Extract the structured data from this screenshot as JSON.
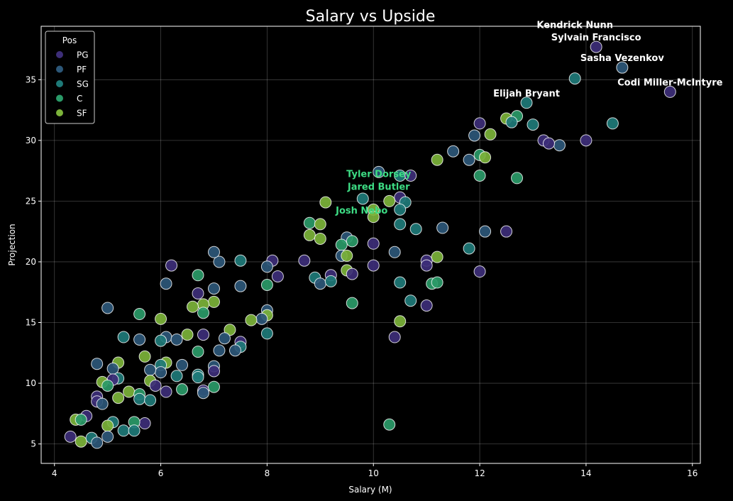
{
  "chart_data": {
    "type": "scatter",
    "title": "Salary vs Upside",
    "xlabel": "Salary (M)",
    "ylabel": "Projection",
    "xlim": [
      3.75,
      16.15
    ],
    "ylim": [
      3.4,
      39.4
    ],
    "xticks": [
      4,
      6,
      8,
      10,
      12,
      14,
      16
    ],
    "yticks": [
      5,
      10,
      15,
      20,
      25,
      30,
      35
    ],
    "grid": true,
    "legend": {
      "title": "Pos",
      "placement": "top-left",
      "entries": [
        "PG",
        "PF",
        "SG",
        "C",
        "SF"
      ]
    },
    "colors": {
      "PG": "#3d2e78",
      "PF": "#2c5778",
      "SG": "#1e7a78",
      "C": "#2a9a68",
      "SF": "#7cb33a"
    },
    "annotation_colors": {
      "top": "#ffffff",
      "value": "#3ddc84"
    },
    "annotations": [
      {
        "text": "Sylvain Francisco",
        "x": 14.19,
        "y": 37.7,
        "style": "top"
      },
      {
        "text": "Sasha Vezenkov",
        "x": 14.68,
        "y": 36.0,
        "style": "top"
      },
      {
        "text": "Kendrick Nunn",
        "x": 13.79,
        "y": 35.1,
        "style": "top"
      },
      {
        "text": "Codi Miller-McIntyre",
        "x": 15.58,
        "y": 34.0,
        "style": "top"
      },
      {
        "text": "Elijah Bryant",
        "x": 12.88,
        "y": 33.1,
        "style": "top"
      },
      {
        "text": "Jared Butler",
        "x": 10.1,
        "y": 25.4,
        "style": "value"
      },
      {
        "text": "Tyler Dorsey",
        "x": 10.1,
        "y": 25.4,
        "style": "value"
      },
      {
        "text": "Josh Nebo",
        "x": 9.78,
        "y": 23.45,
        "style": "value"
      }
    ],
    "points": [
      {
        "x": 14.19,
        "y": 37.7,
        "pos": "PG"
      },
      {
        "x": 14.68,
        "y": 36.0,
        "pos": "PF"
      },
      {
        "x": 13.79,
        "y": 35.1,
        "pos": "SG"
      },
      {
        "x": 15.58,
        "y": 34.0,
        "pos": "PG"
      },
      {
        "x": 12.88,
        "y": 33.1,
        "pos": "SG"
      },
      {
        "x": 14.5,
        "y": 31.4,
        "pos": "SG"
      },
      {
        "x": 14.0,
        "y": 30.0,
        "pos": "PG"
      },
      {
        "x": 13.5,
        "y": 29.6,
        "pos": "PF"
      },
      {
        "x": 13.2,
        "y": 30.0,
        "pos": "PG"
      },
      {
        "x": 13.3,
        "y": 29.75,
        "pos": "PG"
      },
      {
        "x": 13.0,
        "y": 31.3,
        "pos": "SG"
      },
      {
        "x": 12.7,
        "y": 32.0,
        "pos": "C"
      },
      {
        "x": 12.5,
        "y": 31.8,
        "pos": "SF"
      },
      {
        "x": 12.6,
        "y": 31.5,
        "pos": "SG"
      },
      {
        "x": 12.2,
        "y": 30.5,
        "pos": "SF"
      },
      {
        "x": 12.0,
        "y": 31.4,
        "pos": "PG"
      },
      {
        "x": 11.9,
        "y": 30.4,
        "pos": "PF"
      },
      {
        "x": 11.5,
        "y": 29.1,
        "pos": "PF"
      },
      {
        "x": 11.8,
        "y": 28.4,
        "pos": "PF"
      },
      {
        "x": 12.0,
        "y": 28.8,
        "pos": "C"
      },
      {
        "x": 12.1,
        "y": 28.6,
        "pos": "SF"
      },
      {
        "x": 11.2,
        "y": 28.4,
        "pos": "SF"
      },
      {
        "x": 12.0,
        "y": 27.1,
        "pos": "C"
      },
      {
        "x": 12.7,
        "y": 26.9,
        "pos": "C"
      },
      {
        "x": 10.1,
        "y": 27.4,
        "pos": "PF"
      },
      {
        "x": 10.5,
        "y": 27.1,
        "pos": "SG"
      },
      {
        "x": 10.7,
        "y": 27.1,
        "pos": "PG"
      },
      {
        "x": 10.5,
        "y": 25.3,
        "pos": "PG"
      },
      {
        "x": 10.6,
        "y": 24.9,
        "pos": "SG"
      },
      {
        "x": 10.3,
        "y": 25.0,
        "pos": "SF"
      },
      {
        "x": 9.8,
        "y": 25.2,
        "pos": "SG"
      },
      {
        "x": 9.1,
        "y": 24.9,
        "pos": "SF"
      },
      {
        "x": 10.0,
        "y": 24.3,
        "pos": "SF"
      },
      {
        "x": 10.0,
        "y": 23.7,
        "pos": "SF"
      },
      {
        "x": 10.5,
        "y": 24.3,
        "pos": "SG"
      },
      {
        "x": 10.5,
        "y": 23.1,
        "pos": "SG"
      },
      {
        "x": 10.8,
        "y": 22.7,
        "pos": "SG"
      },
      {
        "x": 11.3,
        "y": 22.8,
        "pos": "PF"
      },
      {
        "x": 12.1,
        "y": 22.5,
        "pos": "PF"
      },
      {
        "x": 12.5,
        "y": 22.5,
        "pos": "PG"
      },
      {
        "x": 8.8,
        "y": 23.2,
        "pos": "C"
      },
      {
        "x": 9.0,
        "y": 23.1,
        "pos": "SF"
      },
      {
        "x": 8.8,
        "y": 22.2,
        "pos": "SF"
      },
      {
        "x": 9.0,
        "y": 21.9,
        "pos": "SF"
      },
      {
        "x": 9.5,
        "y": 22.0,
        "pos": "PF"
      },
      {
        "x": 9.6,
        "y": 21.7,
        "pos": "C"
      },
      {
        "x": 9.4,
        "y": 21.4,
        "pos": "C"
      },
      {
        "x": 10.0,
        "y": 21.5,
        "pos": "PG"
      },
      {
        "x": 9.4,
        "y": 20.5,
        "pos": "PF"
      },
      {
        "x": 9.5,
        "y": 20.5,
        "pos": "SF"
      },
      {
        "x": 10.4,
        "y": 20.8,
        "pos": "PF"
      },
      {
        "x": 11.0,
        "y": 20.1,
        "pos": "PG"
      },
      {
        "x": 11.0,
        "y": 19.7,
        "pos": "PG"
      },
      {
        "x": 11.2,
        "y": 20.4,
        "pos": "SF"
      },
      {
        "x": 11.8,
        "y": 21.1,
        "pos": "SG"
      },
      {
        "x": 12.0,
        "y": 19.2,
        "pos": "PG"
      },
      {
        "x": 10.0,
        "y": 19.7,
        "pos": "PG"
      },
      {
        "x": 9.5,
        "y": 19.3,
        "pos": "SF"
      },
      {
        "x": 9.6,
        "y": 19.0,
        "pos": "PG"
      },
      {
        "x": 8.9,
        "y": 18.7,
        "pos": "SG"
      },
      {
        "x": 9.2,
        "y": 18.9,
        "pos": "PG"
      },
      {
        "x": 9.0,
        "y": 18.2,
        "pos": "PF"
      },
      {
        "x": 9.2,
        "y": 18.4,
        "pos": "SG"
      },
      {
        "x": 10.5,
        "y": 18.3,
        "pos": "SG"
      },
      {
        "x": 11.1,
        "y": 18.2,
        "pos": "C"
      },
      {
        "x": 11.2,
        "y": 18.3,
        "pos": "C"
      },
      {
        "x": 11.0,
        "y": 16.4,
        "pos": "PG"
      },
      {
        "x": 10.7,
        "y": 16.8,
        "pos": "SG"
      },
      {
        "x": 9.6,
        "y": 16.6,
        "pos": "C"
      },
      {
        "x": 10.5,
        "y": 15.1,
        "pos": "SF"
      },
      {
        "x": 10.4,
        "y": 13.8,
        "pos": "PG"
      },
      {
        "x": 10.3,
        "y": 6.6,
        "pos": "C"
      },
      {
        "x": 8.7,
        "y": 20.1,
        "pos": "PG"
      },
      {
        "x": 8.1,
        "y": 20.1,
        "pos": "PG"
      },
      {
        "x": 8.2,
        "y": 18.8,
        "pos": "PG"
      },
      {
        "x": 8.0,
        "y": 19.6,
        "pos": "PF"
      },
      {
        "x": 8.0,
        "y": 18.1,
        "pos": "C"
      },
      {
        "x": 7.5,
        "y": 20.1,
        "pos": "SG"
      },
      {
        "x": 7.1,
        "y": 20.0,
        "pos": "PF"
      },
      {
        "x": 7.0,
        "y": 20.8,
        "pos": "PF"
      },
      {
        "x": 6.2,
        "y": 19.7,
        "pos": "PG"
      },
      {
        "x": 6.7,
        "y": 18.9,
        "pos": "C"
      },
      {
        "x": 6.1,
        "y": 18.2,
        "pos": "PF"
      },
      {
        "x": 7.0,
        "y": 17.8,
        "pos": "PF"
      },
      {
        "x": 7.5,
        "y": 18.0,
        "pos": "PF"
      },
      {
        "x": 6.7,
        "y": 17.4,
        "pos": "PG"
      },
      {
        "x": 8.0,
        "y": 16.0,
        "pos": "PF"
      },
      {
        "x": 8.0,
        "y": 15.6,
        "pos": "SF"
      },
      {
        "x": 7.9,
        "y": 15.3,
        "pos": "PF"
      },
      {
        "x": 7.7,
        "y": 15.2,
        "pos": "SF"
      },
      {
        "x": 7.0,
        "y": 16.7,
        "pos": "SF"
      },
      {
        "x": 6.8,
        "y": 16.5,
        "pos": "SF"
      },
      {
        "x": 6.6,
        "y": 16.3,
        "pos": "SF"
      },
      {
        "x": 6.8,
        "y": 15.8,
        "pos": "C"
      },
      {
        "x": 5.6,
        "y": 15.7,
        "pos": "C"
      },
      {
        "x": 5.0,
        "y": 16.2,
        "pos": "PF"
      },
      {
        "x": 6.0,
        "y": 15.3,
        "pos": "SF"
      },
      {
        "x": 6.5,
        "y": 14.0,
        "pos": "SF"
      },
      {
        "x": 7.3,
        "y": 14.4,
        "pos": "SF"
      },
      {
        "x": 8.0,
        "y": 14.1,
        "pos": "SG"
      },
      {
        "x": 7.5,
        "y": 13.4,
        "pos": "PG"
      },
      {
        "x": 7.5,
        "y": 13.0,
        "pos": "SG"
      },
      {
        "x": 7.4,
        "y": 12.7,
        "pos": "PF"
      },
      {
        "x": 7.2,
        "y": 13.7,
        "pos": "PF"
      },
      {
        "x": 7.1,
        "y": 12.7,
        "pos": "PF"
      },
      {
        "x": 6.1,
        "y": 13.8,
        "pos": "PF"
      },
      {
        "x": 6.3,
        "y": 13.6,
        "pos": "PF"
      },
      {
        "x": 6.0,
        "y": 13.5,
        "pos": "SG"
      },
      {
        "x": 5.6,
        "y": 13.6,
        "pos": "PF"
      },
      {
        "x": 5.3,
        "y": 13.8,
        "pos": "SG"
      },
      {
        "x": 6.8,
        "y": 14.0,
        "pos": "PG"
      },
      {
        "x": 6.7,
        "y": 12.6,
        "pos": "C"
      },
      {
        "x": 5.2,
        "y": 11.7,
        "pos": "SF"
      },
      {
        "x": 5.1,
        "y": 11.2,
        "pos": "PF"
      },
      {
        "x": 5.2,
        "y": 10.4,
        "pos": "SG"
      },
      {
        "x": 5.1,
        "y": 10.3,
        "pos": "PG"
      },
      {
        "x": 4.8,
        "y": 11.6,
        "pos": "PF"
      },
      {
        "x": 5.7,
        "y": 12.2,
        "pos": "SF"
      },
      {
        "x": 6.1,
        "y": 11.7,
        "pos": "SF"
      },
      {
        "x": 6.0,
        "y": 11.5,
        "pos": "SG"
      },
      {
        "x": 6.0,
        "y": 10.9,
        "pos": "PF"
      },
      {
        "x": 5.8,
        "y": 11.1,
        "pos": "PF"
      },
      {
        "x": 6.4,
        "y": 11.5,
        "pos": "PF"
      },
      {
        "x": 6.3,
        "y": 10.6,
        "pos": "SG"
      },
      {
        "x": 7.0,
        "y": 11.4,
        "pos": "PF"
      },
      {
        "x": 7.0,
        "y": 11.0,
        "pos": "PG"
      },
      {
        "x": 6.7,
        "y": 10.7,
        "pos": "SG"
      },
      {
        "x": 6.7,
        "y": 10.5,
        "pos": "SG"
      },
      {
        "x": 5.8,
        "y": 10.2,
        "pos": "SF"
      },
      {
        "x": 5.9,
        "y": 9.8,
        "pos": "PG"
      },
      {
        "x": 6.1,
        "y": 9.3,
        "pos": "PG"
      },
      {
        "x": 6.4,
        "y": 9.5,
        "pos": "C"
      },
      {
        "x": 7.0,
        "y": 9.7,
        "pos": "C"
      },
      {
        "x": 6.8,
        "y": 9.4,
        "pos": "PG"
      },
      {
        "x": 6.8,
        "y": 9.2,
        "pos": "PF"
      },
      {
        "x": 4.9,
        "y": 10.1,
        "pos": "SF"
      },
      {
        "x": 5.0,
        "y": 9.8,
        "pos": "C"
      },
      {
        "x": 4.8,
        "y": 8.9,
        "pos": "PG"
      },
      {
        "x": 4.8,
        "y": 8.5,
        "pos": "PG"
      },
      {
        "x": 4.9,
        "y": 8.3,
        "pos": "PF"
      },
      {
        "x": 5.2,
        "y": 8.8,
        "pos": "SF"
      },
      {
        "x": 5.4,
        "y": 9.3,
        "pos": "SF"
      },
      {
        "x": 5.6,
        "y": 9.1,
        "pos": "C"
      },
      {
        "x": 5.6,
        "y": 8.7,
        "pos": "SG"
      },
      {
        "x": 5.8,
        "y": 8.6,
        "pos": "SG"
      },
      {
        "x": 4.6,
        "y": 7.3,
        "pos": "PG"
      },
      {
        "x": 4.4,
        "y": 7.0,
        "pos": "SF"
      },
      {
        "x": 4.5,
        "y": 7.0,
        "pos": "C"
      },
      {
        "x": 5.7,
        "y": 6.7,
        "pos": "PG"
      },
      {
        "x": 5.5,
        "y": 6.8,
        "pos": "C"
      },
      {
        "x": 5.1,
        "y": 6.8,
        "pos": "SG"
      },
      {
        "x": 5.0,
        "y": 6.5,
        "pos": "SF"
      },
      {
        "x": 5.3,
        "y": 6.1,
        "pos": "SG"
      },
      {
        "x": 5.5,
        "y": 6.1,
        "pos": "SG"
      },
      {
        "x": 5.0,
        "y": 5.6,
        "pos": "PF"
      },
      {
        "x": 4.3,
        "y": 5.6,
        "pos": "PG"
      },
      {
        "x": 4.5,
        "y": 5.2,
        "pos": "SF"
      },
      {
        "x": 4.7,
        "y": 5.5,
        "pos": "SG"
      },
      {
        "x": 4.8,
        "y": 5.1,
        "pos": "PF"
      }
    ]
  }
}
